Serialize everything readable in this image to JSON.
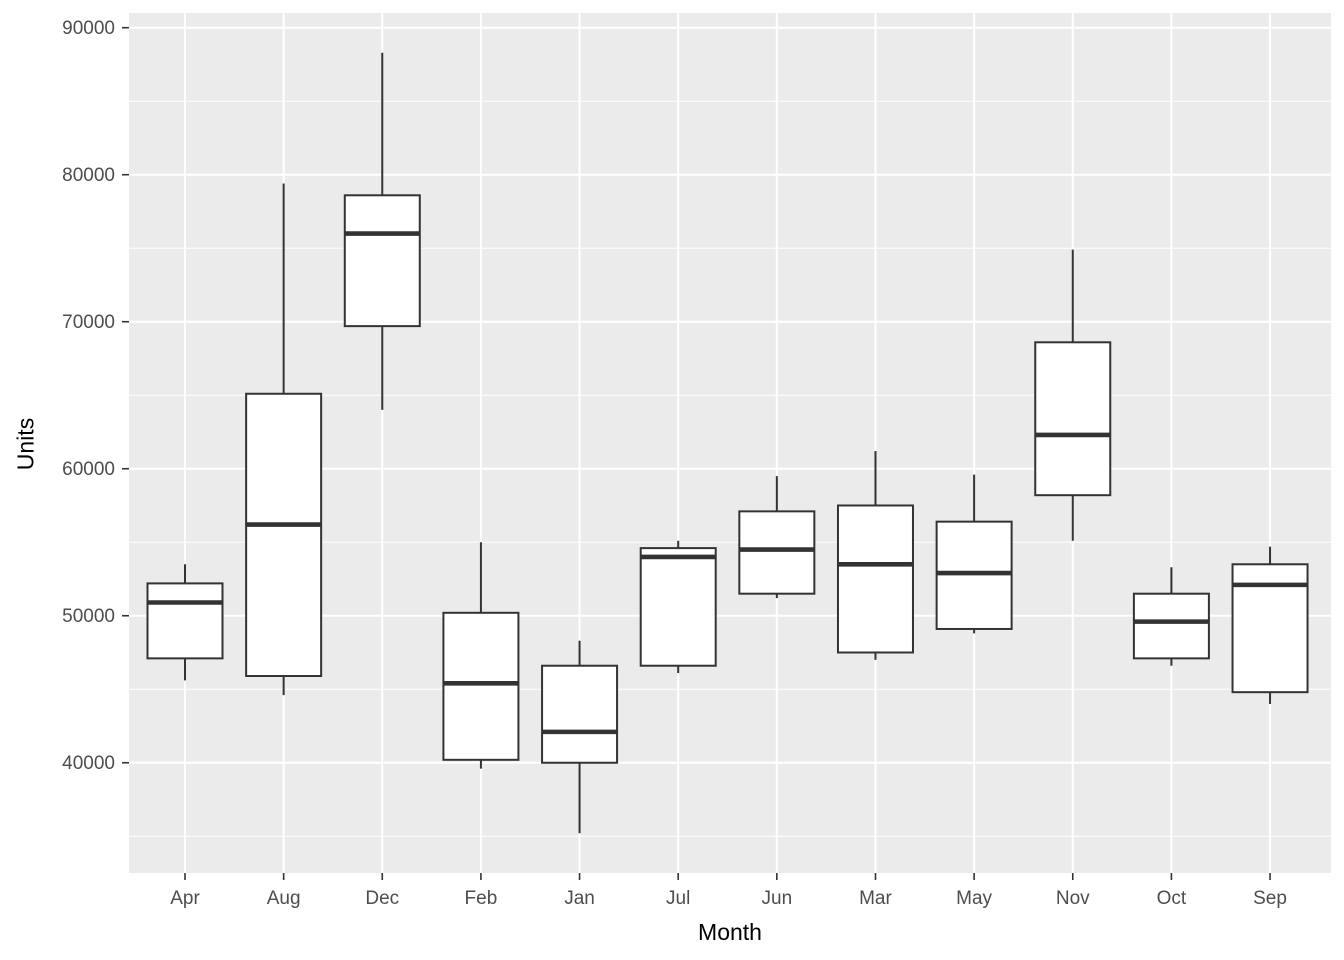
{
  "figure": {
    "background": "#FFFFFF",
    "panel_background": "#EBEBEB",
    "gridline_color": "#FFFFFF",
    "box_stroke": "#333333",
    "box_fill": "#FFFFFF",
    "tick_mark_color": "#333333",
    "axis_text_color": "#4D4D4D",
    "axis_title_color": "#000000"
  },
  "chart_data": {
    "type": "boxplot",
    "title": "",
    "xlabel": "Month",
    "ylabel": "Units",
    "grid": true,
    "legend": false,
    "categories": [
      "Apr",
      "Aug",
      "Dec",
      "Feb",
      "Jan",
      "Jul",
      "Jun",
      "Mar",
      "May",
      "Nov",
      "Oct",
      "Sep"
    ],
    "series": [
      {
        "name": "Apr",
        "min": 45600,
        "q1": 47100,
        "median": 50900,
        "q3": 52200,
        "max": 53500
      },
      {
        "name": "Aug",
        "min": 44600,
        "q1": 45900,
        "median": 56200,
        "q3": 65100,
        "max": 79400
      },
      {
        "name": "Dec",
        "min": 64000,
        "q1": 69700,
        "median": 76000,
        "q3": 78600,
        "max": 88300
      },
      {
        "name": "Feb",
        "min": 39600,
        "q1": 40200,
        "median": 45400,
        "q3": 50200,
        "max": 55000
      },
      {
        "name": "Jan",
        "min": 35200,
        "q1": 40000,
        "median": 42100,
        "q3": 46600,
        "max": 48300
      },
      {
        "name": "Jul",
        "min": 46100,
        "q1": 46600,
        "median": 54000,
        "q3": 54600,
        "max": 55100
      },
      {
        "name": "Jun",
        "min": 51200,
        "q1": 51500,
        "median": 54500,
        "q3": 57100,
        "max": 59500
      },
      {
        "name": "Mar",
        "min": 47000,
        "q1": 47500,
        "median": 53500,
        "q3": 57500,
        "max": 61200
      },
      {
        "name": "May",
        "min": 48800,
        "q1": 49100,
        "median": 52900,
        "q3": 56400,
        "max": 59600
      },
      {
        "name": "Nov",
        "min": 55100,
        "q1": 58200,
        "median": 62300,
        "q3": 68600,
        "max": 74900
      },
      {
        "name": "Oct",
        "min": 46600,
        "q1": 47100,
        "median": 49600,
        "q3": 51500,
        "max": 53300
      },
      {
        "name": "Sep",
        "min": 44000,
        "q1": 44800,
        "median": 52100,
        "q3": 53500,
        "max": 54700
      }
    ],
    "ylim": [
      32500,
      91000
    ],
    "y_major_ticks": [
      40000,
      50000,
      60000,
      70000,
      80000,
      90000
    ],
    "y_minor_ticks": [
      35000,
      45000,
      55000,
      65000,
      75000,
      85000
    ],
    "y_tick_labels": [
      "40000",
      "50000",
      "60000",
      "70000",
      "80000",
      "90000"
    ]
  }
}
